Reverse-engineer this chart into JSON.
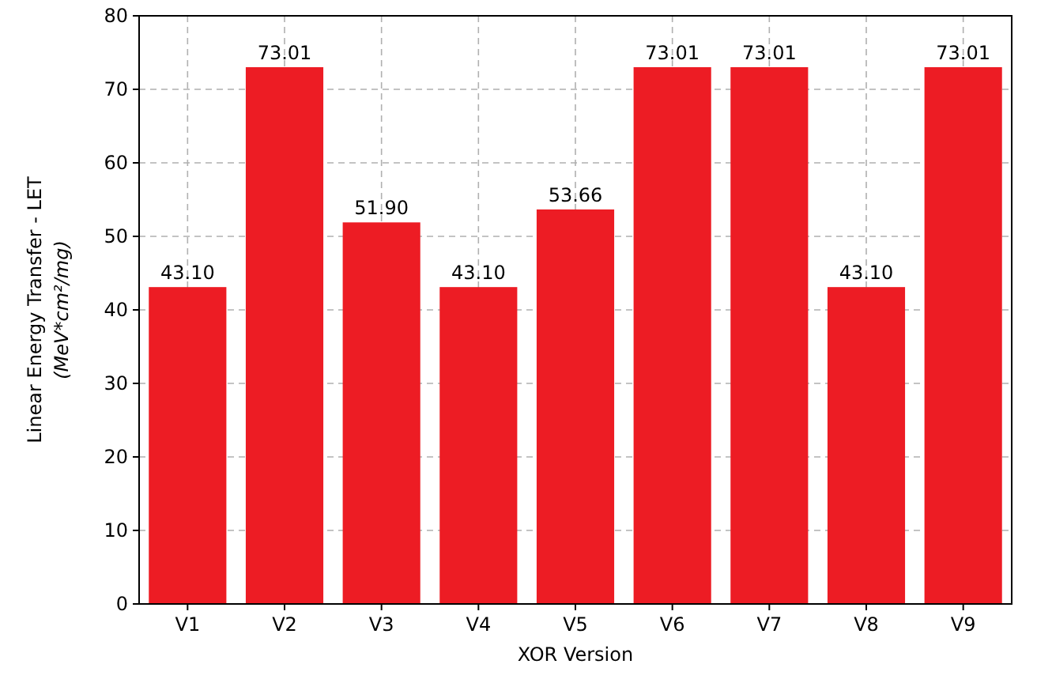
{
  "chart_data": {
    "type": "bar",
    "xlabel": "XOR Version",
    "ylabel": "Linear Energy Transfer - LET\n(MeV*cm²/mg)",
    "categories": [
      "V1",
      "V2",
      "V3",
      "V4",
      "V5",
      "V6",
      "V7",
      "V8",
      "V9"
    ],
    "values": [
      43.1,
      73.01,
      51.9,
      43.1,
      53.66,
      73.01,
      73.01,
      43.1,
      73.01
    ],
    "value_labels": [
      "43.10",
      "73.01",
      "51.90",
      "43.10",
      "53.66",
      "73.01",
      "73.01",
      "43.10",
      "73.01"
    ],
    "color": "#ed1c24",
    "ylim": [
      0,
      80
    ],
    "yticks": [
      0,
      10,
      20,
      30,
      40,
      50,
      60,
      70,
      80
    ],
    "grid": true
  }
}
